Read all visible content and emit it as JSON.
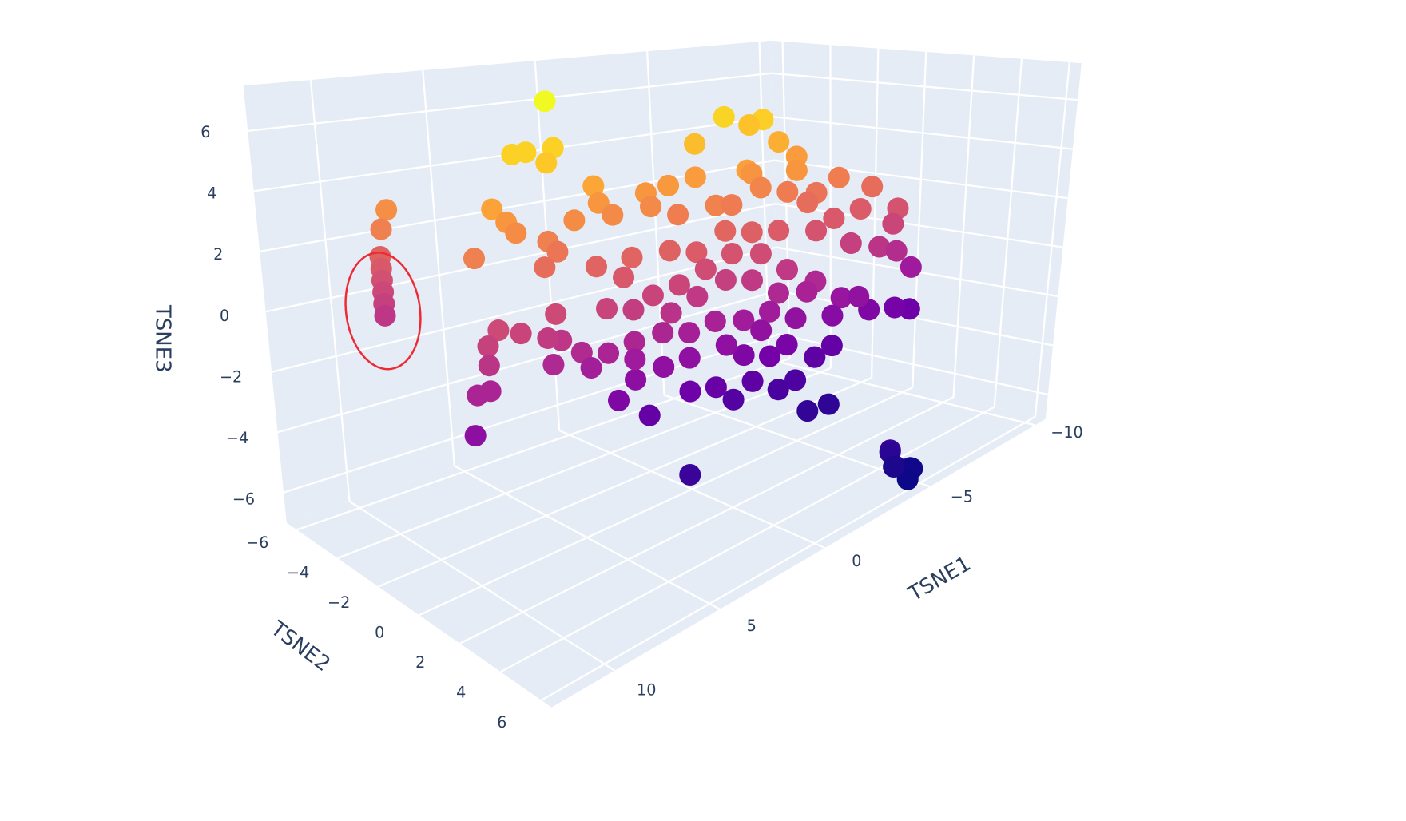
{
  "chart_data": {
    "type": "scatter3d",
    "xlabel": "TSNE1",
    "ylabel": "TSNE2",
    "zlabel": "TSNE3",
    "xlim": [
      -10.5,
      13
    ],
    "ylim": [
      -6.5,
      6.5
    ],
    "zlim": [
      -7,
      7.5
    ],
    "xticks": [
      {
        "value": -10,
        "label": "−10"
      },
      {
        "value": -5,
        "label": "−5"
      },
      0,
      5,
      10
    ],
    "yticks": [
      {
        "value": -6,
        "label": "−6"
      },
      {
        "value": -4,
        "label": "−4"
      },
      {
        "value": -2,
        "label": "−2"
      },
      0,
      2,
      4,
      6
    ],
    "zticks": [
      {
        "value": -6,
        "label": "−6"
      },
      {
        "value": -4,
        "label": "−4"
      },
      {
        "value": -2,
        "label": "−2"
      },
      0,
      2,
      4,
      6
    ],
    "grid": true,
    "series": [
      {
        "colorscale": "Plasma",
        "x": [
          5.1,
          -1.7,
          -2.9,
          -3.3,
          -4.1,
          -0.4,
          -4.9,
          -3.9,
          7.0,
          5.8,
          6.6,
          7.6,
          4.1,
          3.9,
          -6.8,
          1.8,
          0.8,
          -0.4,
          -1.7,
          -2.9,
          -4.5,
          -5.8,
          -8.3,
          8.6,
          8.0,
          7.6,
          9.5,
          9.8,
          9.5,
          6.2,
          5.0,
          3.3,
          1.6,
          0.4,
          -0.8,
          -2.0,
          -3.3,
          -5.4,
          -6.6,
          -7.8,
          -9.5,
          -9.3,
          5.8,
          6.4,
          4.1,
          2.5,
          0.8,
          -0.4,
          -1.7,
          -2.9,
          -4.1,
          -5.8,
          -7.4,
          -8.7,
          -9.5,
          -10.2,
          -10.2,
          -9.5,
          -8.3,
          -7.0,
          -5.8,
          -4.5,
          -3.3,
          -2.0,
          -0.8,
          0.4,
          1.6,
          2.9,
          3.7,
          2.5,
          0.8,
          -0.4,
          -1.7,
          -2.9,
          -4.1,
          -5.4,
          -7.8,
          -6.6,
          -4.9,
          -3.7,
          -2.5,
          -1.2,
          0.0,
          1.2,
          2.5,
          3.7,
          4.9,
          6.2,
          5.8,
          6.4,
          6.0,
          7.6,
          8.6,
          9.1,
          9.1,
          9.1,
          9.7,
          9.9,
          2.5,
          1.2,
          3.3,
          1.9,
          0.0,
          -1.2,
          -2.0,
          -2.9,
          -4.1,
          -4.9,
          -4.5,
          -5.5,
          -5.8,
          -6.6,
          -3.7,
          -2.5,
          2.0,
          -3.5,
          -4.0,
          -3.8,
          -4.3,
          -4.6,
          -4.1,
          -3.9,
          0.0,
          -1.7,
          -3.3,
          -4.5,
          2.5,
          4.5,
          9.0,
          9.0,
          9.0,
          9.0,
          9.0,
          9.0
        ],
        "y": [
          -1,
          0,
          0.5,
          -0.5,
          0,
          0,
          0,
          1,
          0,
          0,
          0.5,
          0,
          0,
          0,
          0,
          0,
          0,
          0,
          1,
          0,
          0,
          0,
          0,
          0,
          0,
          0,
          -4,
          -4,
          0,
          0,
          0,
          0,
          0,
          0,
          0.5,
          0,
          0,
          0,
          0,
          0,
          0,
          0,
          0,
          0,
          0,
          0,
          0,
          0,
          0,
          0,
          0,
          0,
          0,
          0,
          0,
          0,
          0,
          0,
          0,
          0,
          0,
          0,
          0,
          0,
          0,
          0,
          0,
          0,
          0,
          0,
          0,
          0,
          0,
          0,
          0,
          0,
          0,
          0,
          0,
          0,
          0,
          0,
          0,
          0,
          0,
          0,
          0,
          0,
          0,
          0,
          0,
          0,
          0,
          0,
          0,
          0,
          0,
          0,
          0,
          0,
          0,
          0,
          0,
          0,
          0,
          0,
          0,
          0,
          1,
          1,
          0,
          0,
          0,
          0,
          2,
          6,
          5.5,
          6,
          6.2,
          6,
          6.3,
          5.8,
          0,
          0,
          0,
          0,
          0,
          0,
          -5,
          -5,
          -5,
          -5,
          -5,
          -5
        ],
        "z": [
          7.3,
          6.1,
          5.9,
          5.5,
          4.8,
          5.3,
          4.1,
          3.9,
          6.0,
          6.0,
          5.7,
          6.0,
          4.5,
          3.9,
          2.9,
          3.9,
          4.0,
          4.1,
          4.3,
          3.8,
          2.8,
          2.5,
          2.2,
          4.4,
          3.9,
          3.5,
          3.6,
          3.0,
          3.0,
          3.0,
          3.5,
          3.4,
          3.4,
          2.9,
          3.1,
          2.8,
          3.2,
          2.2,
          1.3,
          1.4,
          1.0,
          0.4,
          2.6,
          2.2,
          1.8,
          1.8,
          1.7,
          1.4,
          1.9,
          1.6,
          1.4,
          1.0,
          0.1,
          -0.4,
          -0.8,
          -1.7,
          -3.5,
          -3.2,
          -2.9,
          -2.0,
          -1.0,
          -0.2,
          0.7,
          1.0,
          0.7,
          0.4,
          0.3,
          1.2,
          0.3,
          0.0,
          -0.5,
          -0.2,
          0.1,
          -0.2,
          -1.0,
          -1.3,
          -2.2,
          -2.6,
          -2.2,
          -1.6,
          -1.6,
          -1.3,
          -1.4,
          -1.1,
          -1.1,
          -1.2,
          -0.9,
          -1.0,
          -0.3,
          -0.1,
          0.6,
          0.3,
          0.6,
          0.2,
          -0.4,
          -1.2,
          -1.2,
          -2.4,
          -2.4,
          -2.3,
          -2.9,
          -3.8,
          -3.5,
          -3.7,
          -4.4,
          -4.0,
          -4.7,
          -4.6,
          -5.4,
          -5.5,
          -4.0,
          -3.8,
          -3.3,
          -2.9,
          -5.2,
          -5.2,
          -5.6,
          -5.9,
          -6.1,
          -6.3,
          -6.4,
          -6.0,
          -2.3,
          -2.3,
          -2.2,
          -3.1,
          -1.7,
          -1.5,
          1.7,
          1.3,
          0.9,
          0.5,
          0.1,
          -0.3
        ]
      }
    ]
  }
}
